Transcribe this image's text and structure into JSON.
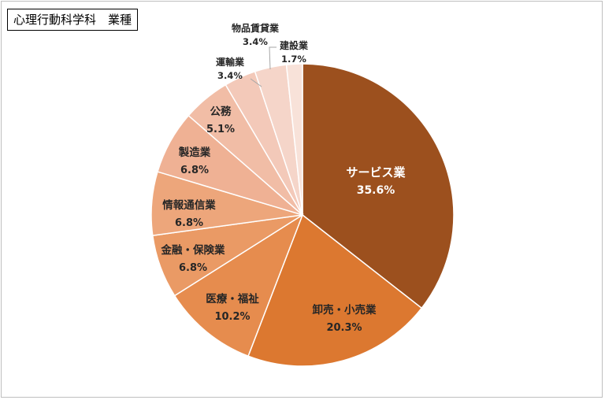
{
  "title": "心理行動科学科　業種",
  "chart_data": {
    "type": "pie",
    "title": "心理行動科学科　業種",
    "start_angle_deg": 0,
    "direction": "clockwise",
    "slices": [
      {
        "label": "サービス業",
        "value": 35.6,
        "value_label": "35.6%",
        "color": "#9C501E"
      },
      {
        "label": "卸売・小売業",
        "value": 20.3,
        "value_label": "20.3%",
        "color": "#DC7830"
      },
      {
        "label": "医療・福祉",
        "value": 10.2,
        "value_label": "10.2%",
        "color": "#E68C4E"
      },
      {
        "label": "金融・保険業",
        "value": 6.8,
        "value_label": "6.8%",
        "color": "#EA9A65"
      },
      {
        "label": "情報通信業",
        "value": 6.8,
        "value_label": "6.8%",
        "color": "#EDA67B"
      },
      {
        "label": "製造業",
        "value": 6.8,
        "value_label": "6.8%",
        "color": "#EFB194"
      },
      {
        "label": "公務",
        "value": 5.1,
        "value_label": "5.1%",
        "color": "#F1BDA6"
      },
      {
        "label": "運輸業",
        "value": 3.4,
        "value_label": "3.4%",
        "color": "#F3C9B9"
      },
      {
        "label": "物品賃貸業",
        "value": 3.4,
        "value_label": "3.4%",
        "color": "#F5D5C9"
      },
      {
        "label": "建設業",
        "value": 1.7,
        "value_label": "1.7%",
        "color": "#F8E2D9"
      }
    ]
  }
}
